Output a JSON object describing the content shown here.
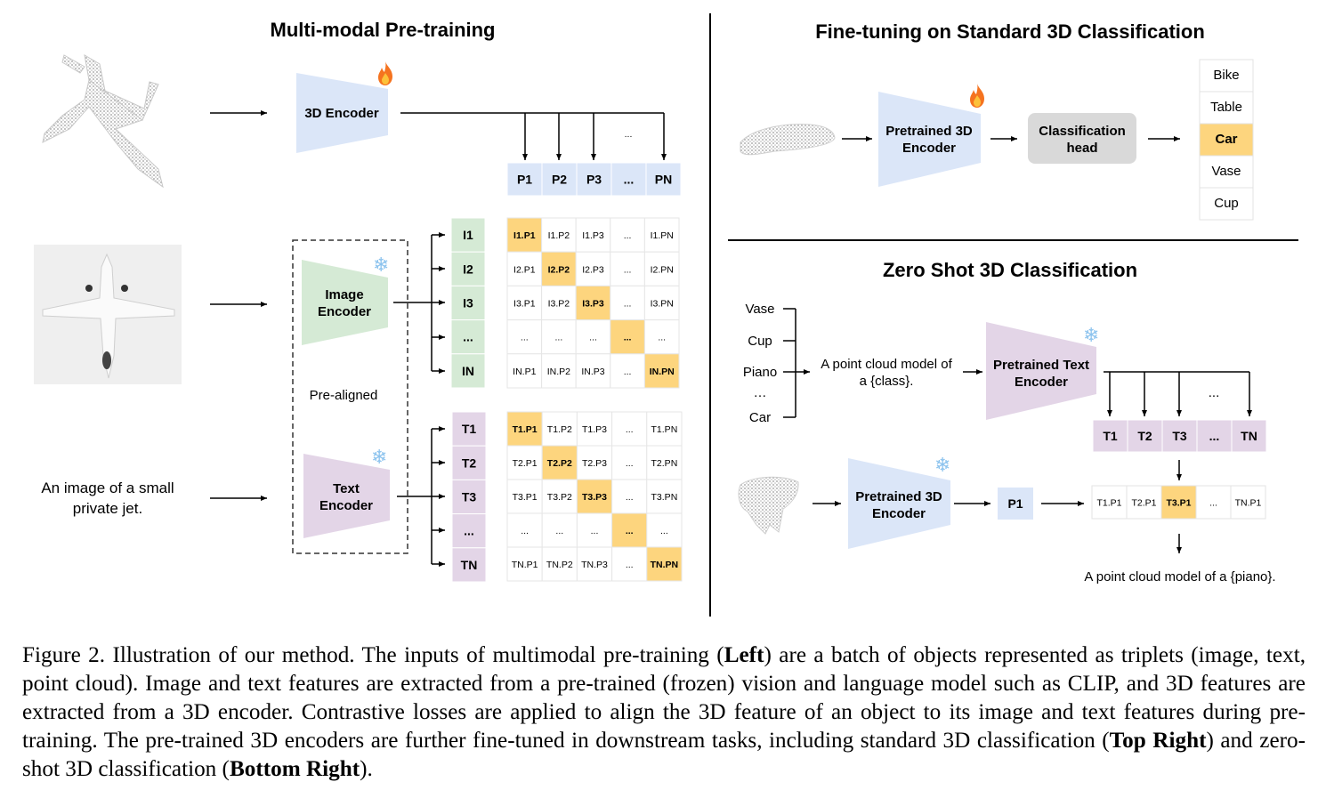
{
  "left": {
    "title": "Multi-modal Pre-training",
    "encoder_3d": "3D Encoder",
    "image_encoder": [
      "Image",
      "Encoder"
    ],
    "text_encoder": [
      "Text",
      "Encoder"
    ],
    "pre_aligned": "Pre-aligned",
    "text_input": [
      "An image of a small",
      "private jet."
    ],
    "dots": "...",
    "p_row": [
      "P1",
      "P2",
      "P3",
      "...",
      "PN"
    ],
    "i_col": [
      "I1",
      "I2",
      "I3",
      "...",
      "IN"
    ],
    "t_col": [
      "T1",
      "T2",
      "T3",
      "...",
      "TN"
    ],
    "i_matrix": [
      [
        "I1.P1",
        "I1.P2",
        "I1.P3",
        "...",
        "I1.PN"
      ],
      [
        "I2.P1",
        "I2.P2",
        "I2.P3",
        "...",
        "I2.PN"
      ],
      [
        "I3.P1",
        "I3.P2",
        "I3.P3",
        "...",
        "I3.PN"
      ],
      [
        "...",
        "...",
        "...",
        "...",
        "..."
      ],
      [
        "IN.P1",
        "IN.P2",
        "IN.P3",
        "...",
        "IN.PN"
      ]
    ],
    "t_matrix": [
      [
        "T1.P1",
        "T1.P2",
        "T1.P3",
        "...",
        "T1.PN"
      ],
      [
        "T2.P1",
        "T2.P2",
        "T2.P3",
        "...",
        "T2.PN"
      ],
      [
        "T3.P1",
        "T3.P2",
        "T3.P3",
        "...",
        "T3.PN"
      ],
      [
        "...",
        "...",
        "...",
        "...",
        "..."
      ],
      [
        "TN.P1",
        "TN.P2",
        "TN.P3",
        "...",
        "TN.PN"
      ]
    ]
  },
  "finetune": {
    "title": "Fine-tuning on Standard 3D Classification",
    "encoder": [
      "Pretrained 3D",
      "Encoder"
    ],
    "head": [
      "Classification",
      "head"
    ],
    "classes": [
      "Bike",
      "Table",
      "Car",
      "Vase",
      "Cup"
    ],
    "selected_class": "Car"
  },
  "zeroshot": {
    "title": "Zero Shot 3D Classification",
    "classes": [
      "Vase",
      "Cup",
      "Piano",
      "…",
      "Car"
    ],
    "template": [
      "A point cloud model of",
      "a {class}."
    ],
    "text_encoder": [
      "Pretrained Text",
      "Encoder"
    ],
    "encoder_3d": [
      "Pretrained 3D",
      "Encoder"
    ],
    "t_row": [
      "T1",
      "T2",
      "T3",
      "...",
      "TN"
    ],
    "dots": "...",
    "p1": "P1",
    "scores": [
      "T1.P1",
      "T2.P1",
      "T3.P1",
      "...",
      "TN.P1"
    ],
    "selected_score": "T3.P1",
    "result": "A point cloud model of a {piano}."
  },
  "colors": {
    "encoder_3d": "#dbe6f8",
    "image_encoder": "#d5ead5",
    "text_encoder": "#e3d5e7",
    "highlight": "#fdd57e",
    "head": "#d9d9d9",
    "snowflake": "#8cc3ee",
    "fire": "#f5731f"
  },
  "icons": [
    "fire-icon",
    "snowflake-icon"
  ],
  "caption": {
    "segments": [
      {
        "text": "Figure 2. Illustration of our method. The inputs of multimodal pre-training (",
        "bold": false
      },
      {
        "text": "Left",
        "bold": true
      },
      {
        "text": ") are a batch of objects represented as triplets (image, text, point cloud).  Image and text features are extracted from a pre-trained (frozen) vision and language model such as CLIP, and 3D features are extracted from a 3D encoder.  Contrastive losses are applied to align the 3D feature of an object to its image and text features during pre-training. The pre-trained 3D encoders are further fine-tuned in downstream tasks, including standard 3D classification (",
        "bold": false
      },
      {
        "text": "Top Right",
        "bold": true
      },
      {
        "text": ") and zero-shot 3D classification (",
        "bold": false
      },
      {
        "text": "Bottom Right",
        "bold": true
      },
      {
        "text": ").",
        "bold": false
      }
    ]
  }
}
